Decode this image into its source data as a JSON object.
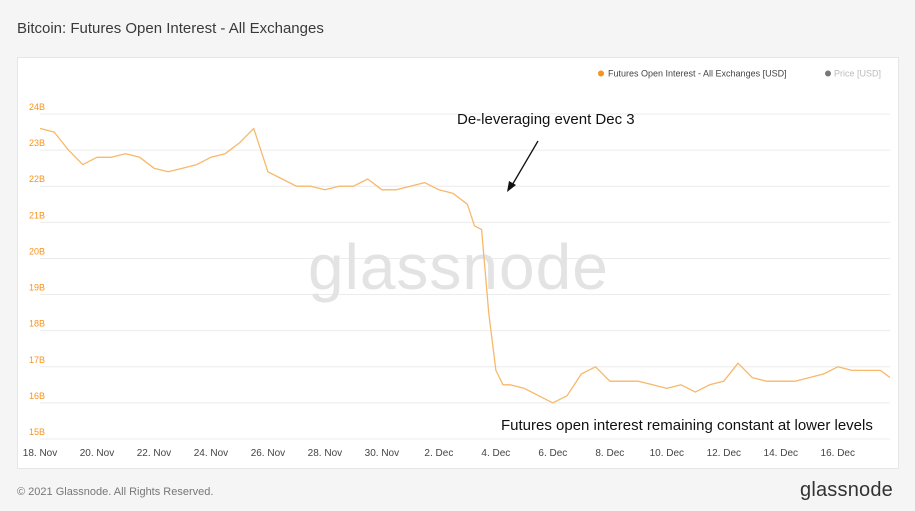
{
  "header": {
    "title": "Bitcoin: Futures Open Interest - All Exchanges"
  },
  "footer": {
    "copyright": "© 2021 Glassnode. All Rights Reserved.",
    "logo": "glassnode"
  },
  "watermark": "glassnode",
  "colors": {
    "series": "#f7931a",
    "series_line": "#f7b86a",
    "price_legend": "#777777",
    "annotation": "#111111"
  },
  "chart_data": {
    "type": "line",
    "title": "Bitcoin: Futures Open Interest - All Exchanges",
    "xlabel": "",
    "ylabel": "",
    "ylim": [
      15,
      24
    ],
    "xlim": [
      "2021-11-18",
      "2021-12-17T20:00"
    ],
    "y_ticks": [
      "15B",
      "16B",
      "17B",
      "18B",
      "19B",
      "20B",
      "21B",
      "22B",
      "23B",
      "24B"
    ],
    "y_tick_values": [
      15,
      16,
      17,
      18,
      19,
      20,
      21,
      22,
      23,
      24
    ],
    "x_ticks": [
      "18. Nov",
      "20. Nov",
      "22. Nov",
      "24. Nov",
      "26. Nov",
      "28. Nov",
      "30. Nov",
      "2. Dec",
      "4. Dec",
      "6. Dec",
      "8. Dec",
      "10. Dec",
      "12. Dec",
      "14. Dec",
      "16. Dec"
    ],
    "x_tick_values": [
      "2021-11-18",
      "2021-11-20",
      "2021-11-22",
      "2021-11-24",
      "2021-11-26",
      "2021-11-28",
      "2021-11-30",
      "2021-12-02",
      "2021-12-04",
      "2021-12-06",
      "2021-12-08",
      "2021-12-10",
      "2021-12-12",
      "2021-12-14",
      "2021-12-16"
    ],
    "grid": true,
    "legend": [
      {
        "label": "Futures Open Interest - All Exchanges [USD]",
        "color": "#f7931a"
      },
      {
        "label": "Price [USD]",
        "color": "#777777"
      }
    ],
    "legend_position": "top-right",
    "annotations": [
      {
        "text": "De-leveraging event Dec 3",
        "arrow_to": [
          "2021-12-03T12:00",
          21.9
        ]
      },
      {
        "text": "Futures open interest remaining constant at lower levels"
      }
    ],
    "series": [
      {
        "name": "Futures Open Interest - All Exchanges [USD]",
        "x": [
          "2021-11-18",
          "2021-11-18T12:00",
          "2021-11-19",
          "2021-11-19T12:00",
          "2021-11-20",
          "2021-11-20T12:00",
          "2021-11-21",
          "2021-11-21T12:00",
          "2021-11-22",
          "2021-11-22T12:00",
          "2021-11-23",
          "2021-11-23T12:00",
          "2021-11-24",
          "2021-11-24T12:00",
          "2021-11-25",
          "2021-11-25T12:00",
          "2021-11-26",
          "2021-11-26T12:00",
          "2021-11-27",
          "2021-11-27T12:00",
          "2021-11-28",
          "2021-11-28T12:00",
          "2021-11-29",
          "2021-11-29T12:00",
          "2021-11-30",
          "2021-11-30T12:00",
          "2021-12-01",
          "2021-12-01T12:00",
          "2021-12-02",
          "2021-12-02T12:00",
          "2021-12-03",
          "2021-12-03T06:00",
          "2021-12-03T12:00",
          "2021-12-03T18:00",
          "2021-12-04",
          "2021-12-04T06:00",
          "2021-12-04T12:00",
          "2021-12-05",
          "2021-12-05T12:00",
          "2021-12-06",
          "2021-12-06T12:00",
          "2021-12-07",
          "2021-12-07T12:00",
          "2021-12-08",
          "2021-12-08T12:00",
          "2021-12-09",
          "2021-12-09T12:00",
          "2021-12-10",
          "2021-12-10T12:00",
          "2021-12-11",
          "2021-12-11T12:00",
          "2021-12-12",
          "2021-12-12T12:00",
          "2021-12-13",
          "2021-12-13T12:00",
          "2021-12-14",
          "2021-12-14T12:00",
          "2021-12-15",
          "2021-12-15T12:00",
          "2021-12-16",
          "2021-12-16T12:00",
          "2021-12-17",
          "2021-12-17T12:00",
          "2021-12-17T20:00"
        ],
        "values": [
          23.6,
          23.5,
          23.0,
          22.6,
          22.8,
          22.8,
          22.9,
          22.8,
          22.5,
          22.4,
          22.5,
          22.6,
          22.8,
          22.9,
          23.2,
          23.6,
          22.4,
          22.2,
          22.0,
          22.0,
          21.9,
          22.0,
          22.0,
          22.2,
          21.9,
          21.9,
          22.0,
          22.1,
          21.9,
          21.8,
          21.5,
          20.9,
          20.8,
          18.5,
          16.9,
          16.5,
          16.5,
          16.4,
          16.2,
          16.0,
          16.2,
          16.8,
          17.0,
          16.6,
          16.6,
          16.6,
          16.5,
          16.4,
          16.5,
          16.3,
          16.5,
          16.6,
          17.1,
          16.7,
          16.6,
          16.6,
          16.6,
          16.7,
          16.8,
          17.0,
          16.9,
          16.9,
          16.9,
          16.7
        ]
      }
    ]
  }
}
